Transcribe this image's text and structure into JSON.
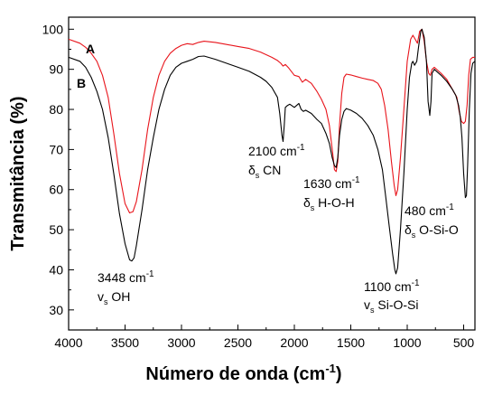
{
  "chart_data": {
    "type": "line",
    "xlabel_main": "Número de onda (cm",
    "xlabel_sup": "-1",
    "xlabel_close": ")",
    "ylabel": "Transmitância (%)",
    "xlim": [
      4000,
      400
    ],
    "ylim": [
      25,
      103
    ],
    "x_ticks": [
      4000,
      3500,
      3000,
      2500,
      2000,
      1500,
      1000,
      500
    ],
    "y_ticks": [
      30,
      40,
      50,
      60,
      70,
      80,
      90,
      100
    ],
    "grid": false,
    "series": [
      {
        "name": "A",
        "color": "#e8141b",
        "points": [
          [
            4000,
            97.5
          ],
          [
            3900,
            96.5
          ],
          [
            3850,
            95.5
          ],
          [
            3800,
            94
          ],
          [
            3750,
            92
          ],
          [
            3700,
            88.5
          ],
          [
            3650,
            83
          ],
          [
            3600,
            74
          ],
          [
            3550,
            64
          ],
          [
            3500,
            56.5
          ],
          [
            3460,
            54.2
          ],
          [
            3430,
            54.5
          ],
          [
            3400,
            57
          ],
          [
            3350,
            65
          ],
          [
            3300,
            75
          ],
          [
            3250,
            83
          ],
          [
            3200,
            88.5
          ],
          [
            3150,
            92
          ],
          [
            3100,
            94
          ],
          [
            3050,
            95.2
          ],
          [
            3000,
            96
          ],
          [
            2950,
            96.4
          ],
          [
            2900,
            96.2
          ],
          [
            2850,
            96.7
          ],
          [
            2800,
            97
          ],
          [
            2700,
            96.7
          ],
          [
            2600,
            96.2
          ],
          [
            2500,
            95.7
          ],
          [
            2400,
            95.2
          ],
          [
            2300,
            94.3
          ],
          [
            2200,
            93
          ],
          [
            2150,
            92.2
          ],
          [
            2120,
            91.5
          ],
          [
            2100,
            90.8
          ],
          [
            2080,
            91.2
          ],
          [
            2050,
            90.3
          ],
          [
            2000,
            88.5
          ],
          [
            1960,
            88.2
          ],
          [
            1930,
            86.8
          ],
          [
            1900,
            87.5
          ],
          [
            1850,
            86.5
          ],
          [
            1800,
            84.5
          ],
          [
            1760,
            82.5
          ],
          [
            1720,
            80
          ],
          [
            1690,
            76
          ],
          [
            1660,
            69
          ],
          [
            1645,
            65
          ],
          [
            1630,
            64.5
          ],
          [
            1615,
            67
          ],
          [
            1600,
            76
          ],
          [
            1580,
            84
          ],
          [
            1560,
            88
          ],
          [
            1540,
            88.8
          ],
          [
            1500,
            88.6
          ],
          [
            1450,
            88.2
          ],
          [
            1400,
            87.8
          ],
          [
            1350,
            87.5
          ],
          [
            1300,
            87.2
          ],
          [
            1260,
            86.5
          ],
          [
            1230,
            85
          ],
          [
            1200,
            81
          ],
          [
            1170,
            75
          ],
          [
            1140,
            67
          ],
          [
            1115,
            61
          ],
          [
            1100,
            58.5
          ],
          [
            1085,
            60
          ],
          [
            1060,
            68
          ],
          [
            1030,
            80
          ],
          [
            1000,
            92
          ],
          [
            970,
            97.5
          ],
          [
            950,
            98.5
          ],
          [
            930,
            97.5
          ],
          [
            910,
            96.5
          ],
          [
            890,
            99.5
          ],
          [
            870,
            100
          ],
          [
            850,
            97
          ],
          [
            830,
            92
          ],
          [
            810,
            89
          ],
          [
            795,
            88.5
          ],
          [
            780,
            90
          ],
          [
            760,
            90.5
          ],
          [
            700,
            89
          ],
          [
            650,
            87.5
          ],
          [
            600,
            85
          ],
          [
            560,
            83
          ],
          [
            540,
            79.5
          ],
          [
            520,
            77
          ],
          [
            500,
            76.5
          ],
          [
            485,
            77
          ],
          [
            470,
            81
          ],
          [
            455,
            88.5
          ],
          [
            440,
            92.5
          ],
          [
            420,
            93
          ],
          [
            400,
            93
          ]
        ]
      },
      {
        "name": "B",
        "color": "#000000",
        "points": [
          [
            4000,
            93
          ],
          [
            3900,
            92
          ],
          [
            3850,
            90.5
          ],
          [
            3800,
            88
          ],
          [
            3750,
            84.5
          ],
          [
            3700,
            80
          ],
          [
            3650,
            73
          ],
          [
            3600,
            64
          ],
          [
            3550,
            54
          ],
          [
            3500,
            46.5
          ],
          [
            3460,
            42.5
          ],
          [
            3440,
            42.2
          ],
          [
            3420,
            43
          ],
          [
            3400,
            46
          ],
          [
            3350,
            55
          ],
          [
            3300,
            65
          ],
          [
            3250,
            73
          ],
          [
            3200,
            80
          ],
          [
            3150,
            85
          ],
          [
            3100,
            88.5
          ],
          [
            3050,
            90.5
          ],
          [
            3000,
            91.5
          ],
          [
            2950,
            92
          ],
          [
            2900,
            92.5
          ],
          [
            2850,
            93.2
          ],
          [
            2800,
            93.3
          ],
          [
            2700,
            92.5
          ],
          [
            2600,
            91.5
          ],
          [
            2500,
            90.5
          ],
          [
            2400,
            89.5
          ],
          [
            2300,
            88
          ],
          [
            2250,
            87
          ],
          [
            2200,
            85.5
          ],
          [
            2150,
            83
          ],
          [
            2130,
            79
          ],
          [
            2110,
            73.5
          ],
          [
            2100,
            72
          ],
          [
            2090,
            76
          ],
          [
            2080,
            80.5
          ],
          [
            2060,
            81
          ],
          [
            2040,
            81.3
          ],
          [
            2000,
            80.5
          ],
          [
            1960,
            81.5
          ],
          [
            1940,
            80
          ],
          [
            1920,
            79.5
          ],
          [
            1900,
            79.8
          ],
          [
            1850,
            79
          ],
          [
            1800,
            77.5
          ],
          [
            1760,
            76.5
          ],
          [
            1720,
            74
          ],
          [
            1690,
            71.5
          ],
          [
            1665,
            68
          ],
          [
            1645,
            66
          ],
          [
            1630,
            65.5
          ],
          [
            1615,
            68
          ],
          [
            1600,
            73.5
          ],
          [
            1580,
            77.5
          ],
          [
            1560,
            79.5
          ],
          [
            1540,
            80.2
          ],
          [
            1500,
            79.8
          ],
          [
            1450,
            79
          ],
          [
            1400,
            77.8
          ],
          [
            1350,
            76
          ],
          [
            1300,
            73.5
          ],
          [
            1260,
            70
          ],
          [
            1220,
            65
          ],
          [
            1190,
            58
          ],
          [
            1160,
            51
          ],
          [
            1130,
            44
          ],
          [
            1110,
            40
          ],
          [
            1100,
            39
          ],
          [
            1085,
            40.5
          ],
          [
            1060,
            50
          ],
          [
            1030,
            64
          ],
          [
            1000,
            80
          ],
          [
            980,
            88
          ],
          [
            960,
            91.5
          ],
          [
            950,
            92
          ],
          [
            935,
            91
          ],
          [
            915,
            92
          ],
          [
            900,
            95.5
          ],
          [
            880,
            99.5
          ],
          [
            870,
            100
          ],
          [
            860,
            99
          ],
          [
            850,
            98
          ],
          [
            830,
            92
          ],
          [
            815,
            82
          ],
          [
            800,
            78.5
          ],
          [
            790,
            82
          ],
          [
            780,
            89
          ],
          [
            760,
            90
          ],
          [
            700,
            88.5
          ],
          [
            650,
            87
          ],
          [
            600,
            85
          ],
          [
            570,
            83.5
          ],
          [
            545,
            81
          ],
          [
            530,
            78
          ],
          [
            515,
            73
          ],
          [
            500,
            64
          ],
          [
            485,
            58
          ],
          [
            475,
            58.5
          ],
          [
            465,
            66
          ],
          [
            450,
            80
          ],
          [
            435,
            89
          ],
          [
            420,
            91.5
          ],
          [
            400,
            92
          ]
        ]
      }
    ],
    "labels": {
      "A": "A",
      "B": "B",
      "p1_freq": "3448 cm",
      "p1_sup": "-1",
      "p1_mode": "v",
      "p1_sub": "s",
      "p1_group": " OH",
      "p2_freq": "2100 cm",
      "p2_sup": "-1",
      "p2_mode": "δ",
      "p2_sub": "s",
      "p2_group": " CN",
      "p3_freq": "1630 cm",
      "p3_sup": "-1",
      "p3_mode": "δ",
      "p3_sub": "s",
      "p3_group": " H-O-H",
      "p4_freq": "1100 cm",
      "p4_sup": "-1",
      "p4_mode": "v",
      "p4_sub": "s",
      "p4_group": " Si-O-Si",
      "p5_freq": "480 cm",
      "p5_sup": "-1",
      "p5_mode": "δ",
      "p5_sub": "s",
      "p5_group": " O-Si-O"
    }
  }
}
